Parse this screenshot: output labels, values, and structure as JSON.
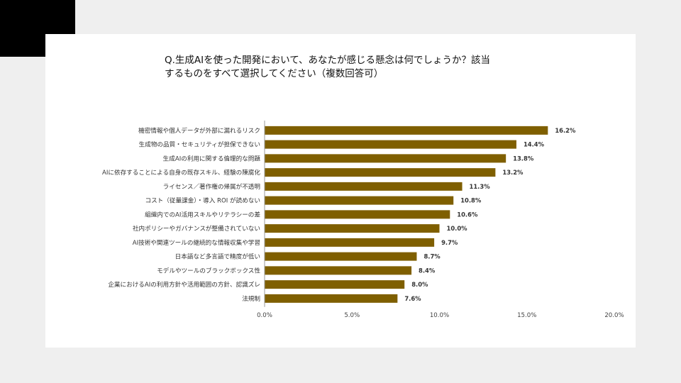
{
  "question": "Q.生成AIを使った開発において、あなたが感じる懸念は何でしょうか？該当\nするものをすべて選択してください（複数回答可）",
  "colors": {
    "bar": "#7f5f00",
    "axis": "#999999"
  },
  "chart_data": {
    "type": "bar",
    "orientation": "horizontal",
    "categories": [
      "機密情報や個人データが外部に漏れるリスク",
      "生成物の品質・セキュリティが担保できない",
      "生成AIの利用に関する倫理的な問題",
      "AIに依存することによる自身の既存スキル、経験の陳腐化",
      "ライセンス／著作権の帰属が不透明",
      "コスト（従量課金）・導入 ROI が読めない",
      "組織内でのAI活用スキルやリテラシーの差",
      "社内ポリシーやガバナンスが整備されていない",
      "AI技術や関連ツールの継続的な情報収集や学習",
      "日本語など多言語で精度が低い",
      "モデルやツールのブラックボックス性",
      "企業におけるAIの利用方針や活用範囲の方針、認識ズレ",
      "法規制"
    ],
    "values": [
      16.2,
      14.4,
      13.8,
      13.2,
      11.3,
      10.8,
      10.6,
      10.0,
      9.7,
      8.7,
      8.4,
      8.0,
      7.6
    ],
    "value_labels": [
      "16.2%",
      "14.4%",
      "13.8%",
      "13.2%",
      "11.3%",
      "10.8%",
      "10.6%",
      "10.0%",
      "9.7%",
      "8.7%",
      "8.4%",
      "8.0%",
      "7.6%"
    ],
    "xlim": [
      0,
      20
    ],
    "xticks": [
      0,
      5,
      10,
      15,
      20
    ],
    "xtick_labels": [
      "0.0%",
      "5.0%",
      "10.0%",
      "15.0%",
      "20.0%"
    ],
    "grid": false,
    "legend": "none"
  }
}
